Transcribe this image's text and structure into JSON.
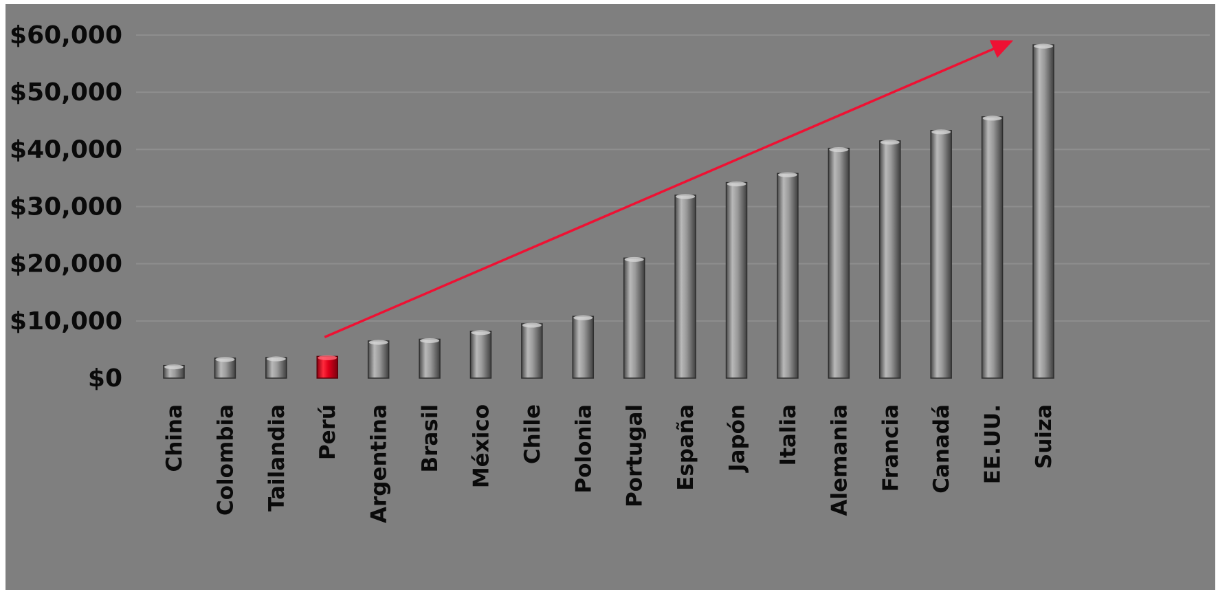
{
  "chart_data": {
    "type": "bar",
    "categories": [
      "China",
      "Colombia",
      "Tailandia",
      "Perú",
      "Argentina",
      "Brasil",
      "México",
      "Chile",
      "Polonia",
      "Portugal",
      "España",
      "Japón",
      "Italia",
      "Alemania",
      "Francia",
      "Canadá",
      "EE.UU.",
      "Suiza"
    ],
    "values": [
      2200,
      3500,
      3600,
      3800,
      6500,
      6800,
      8200,
      9500,
      10800,
      21000,
      32000,
      34200,
      35800,
      40200,
      41500,
      43300,
      45700,
      58300
    ],
    "ylim": [
      0,
      60000
    ],
    "yticks": [
      "$0",
      "$10,000",
      "$20,000",
      "$30,000",
      "$40,000",
      "$50,000",
      "$60,000"
    ],
    "ytick_values": [
      0,
      10000,
      20000,
      30000,
      40000,
      50000,
      60000
    ],
    "title": "",
    "xlabel": "",
    "ylabel": "",
    "grid": true,
    "legend": "none",
    "highlight_category": "Perú",
    "colors": {
      "background": "#7f7f7f",
      "bar": "#8c8c8c",
      "highlight": "#e0001a",
      "arrow": "#ee1133",
      "text": "#0a0a0a"
    },
    "annotation": {
      "type": "arrow",
      "from_category": "Perú",
      "to_category": "Suiza"
    }
  }
}
